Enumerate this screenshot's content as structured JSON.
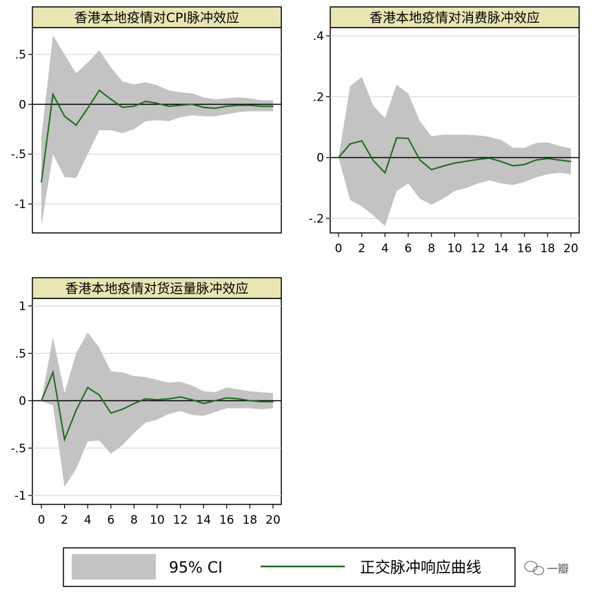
{
  "chart_data": [
    {
      "type": "area",
      "title": "香港本地疫情对CPI脉冲效应",
      "xlabel": "",
      "ylabel": "",
      "x": [
        0,
        1,
        2,
        3,
        4,
        5,
        6,
        7,
        8,
        9,
        10,
        11,
        12,
        13,
        14,
        15,
        16,
        17,
        18,
        19,
        20
      ],
      "xlim": [
        0,
        20
      ],
      "ylim": [
        -1.3,
        0.55
      ],
      "yticks": [
        0.5,
        0,
        -0.5,
        -1
      ],
      "ytick_labels": [
        ".5",
        "0",
        "-.5",
        "-1"
      ],
      "xticks": [],
      "xtick_labels": [],
      "grid": true,
      "series": [
        {
          "kind": "band",
          "lower": [
            -1.22,
            -0.5,
            -0.73,
            -0.74,
            -0.5,
            -0.26,
            -0.26,
            -0.29,
            -0.25,
            -0.17,
            -0.16,
            -0.17,
            -0.13,
            -0.11,
            -0.12,
            -0.12,
            -0.1,
            -0.08,
            -0.07,
            -0.07,
            -0.07
          ],
          "upper": [
            -0.33,
            0.69,
            0.5,
            0.31,
            0.42,
            0.54,
            0.37,
            0.23,
            0.2,
            0.22,
            0.19,
            0.14,
            0.12,
            0.11,
            0.07,
            0.05,
            0.06,
            0.07,
            0.06,
            0.04,
            0.04
          ]
        },
        {
          "kind": "line",
          "values": [
            -0.78,
            0.1,
            -0.12,
            -0.21,
            -0.04,
            0.14,
            0.05,
            -0.03,
            -0.02,
            0.03,
            0.01,
            -0.02,
            -0.01,
            0.0,
            -0.03,
            -0.04,
            -0.02,
            -0.01,
            -0.01,
            -0.02,
            -0.02
          ]
        }
      ]
    },
    {
      "type": "area",
      "title": "香港本地疫情对消费脉冲效应",
      "xlabel": "",
      "ylabel": "",
      "x": [
        0,
        1,
        2,
        3,
        4,
        5,
        6,
        7,
        8,
        9,
        10,
        11,
        12,
        13,
        14,
        15,
        16,
        17,
        18,
        19,
        20
      ],
      "xlim": [
        0,
        20
      ],
      "ylim": [
        -0.25,
        0.41
      ],
      "yticks": [
        0.4,
        0.2,
        0,
        -0.2
      ],
      "ytick_labels": [
        ".4",
        ".2",
        "0",
        "-.2"
      ],
      "xticks": [
        0,
        2,
        4,
        6,
        8,
        10,
        12,
        14,
        16,
        18,
        20
      ],
      "xtick_labels": [
        "0",
        "2",
        "4",
        "6",
        "8",
        "10",
        "12",
        "14",
        "16",
        "18",
        "20"
      ],
      "grid": true,
      "series": [
        {
          "kind": "band",
          "lower": [
            0.0,
            -0.14,
            -0.16,
            -0.19,
            -0.225,
            -0.11,
            -0.085,
            -0.135,
            -0.155,
            -0.135,
            -0.11,
            -0.1,
            -0.085,
            -0.075,
            -0.085,
            -0.09,
            -0.08,
            -0.065,
            -0.055,
            -0.05,
            -0.055
          ],
          "upper": [
            0.0,
            0.235,
            0.265,
            0.17,
            0.13,
            0.24,
            0.21,
            0.12,
            0.07,
            0.075,
            0.075,
            0.075,
            0.073,
            0.068,
            0.058,
            0.033,
            0.032,
            0.048,
            0.05,
            0.038,
            0.03
          ]
        },
        {
          "kind": "line",
          "values": [
            0.0,
            0.045,
            0.055,
            -0.01,
            -0.05,
            0.065,
            0.063,
            -0.008,
            -0.04,
            -0.028,
            -0.018,
            -0.012,
            -0.006,
            -0.002,
            -0.013,
            -0.027,
            -0.023,
            -0.008,
            -0.003,
            -0.008,
            -0.013
          ]
        }
      ]
    },
    {
      "type": "area",
      "title": "香港本地疫情对货运量脉冲效应",
      "xlabel": "",
      "ylabel": "",
      "x": [
        0,
        1,
        2,
        3,
        4,
        5,
        6,
        7,
        8,
        9,
        10,
        11,
        12,
        13,
        14,
        15,
        16,
        17,
        18,
        19,
        20
      ],
      "xlim": [
        0,
        20
      ],
      "ylim": [
        -1.1,
        1.0
      ],
      "yticks": [
        1,
        0.5,
        0,
        -0.5,
        -1
      ],
      "ytick_labels": [
        "1",
        ".5",
        "0",
        "-.5",
        "-1"
      ],
      "xticks": [
        0,
        2,
        4,
        6,
        8,
        10,
        12,
        14,
        16,
        18,
        20
      ],
      "xtick_labels": [
        "0",
        "2",
        "4",
        "6",
        "8",
        "10",
        "12",
        "14",
        "16",
        "18",
        "20"
      ],
      "grid": true,
      "series": [
        {
          "kind": "band",
          "lower": [
            0.0,
            -0.05,
            -0.91,
            -0.72,
            -0.43,
            -0.42,
            -0.56,
            -0.47,
            -0.34,
            -0.23,
            -0.2,
            -0.14,
            -0.11,
            -0.15,
            -0.16,
            -0.12,
            -0.08,
            -0.08,
            -0.08,
            -0.09,
            -0.08
          ],
          "upper": [
            0.0,
            0.67,
            0.08,
            0.5,
            0.72,
            0.56,
            0.31,
            0.3,
            0.26,
            0.25,
            0.22,
            0.19,
            0.2,
            0.16,
            0.1,
            0.09,
            0.14,
            0.12,
            0.1,
            0.09,
            0.08
          ]
        },
        {
          "kind": "line",
          "values": [
            0.0,
            0.3,
            -0.41,
            -0.1,
            0.14,
            0.06,
            -0.13,
            -0.09,
            -0.03,
            0.02,
            0.01,
            0.02,
            0.04,
            0.01,
            -0.03,
            0.0,
            0.03,
            0.02,
            0.0,
            -0.01,
            -0.01
          ]
        }
      ]
    }
  ],
  "legend": {
    "band_label": "95% CI",
    "line_label": "正交脉冲响应曲线"
  },
  "watermark": "一瓣",
  "colors": {
    "band": "#c3c3c3",
    "line": "#1a6b1a",
    "title_bg": "#eae6b4",
    "grid": "#d8d8d8",
    "zero": "#000000"
  }
}
